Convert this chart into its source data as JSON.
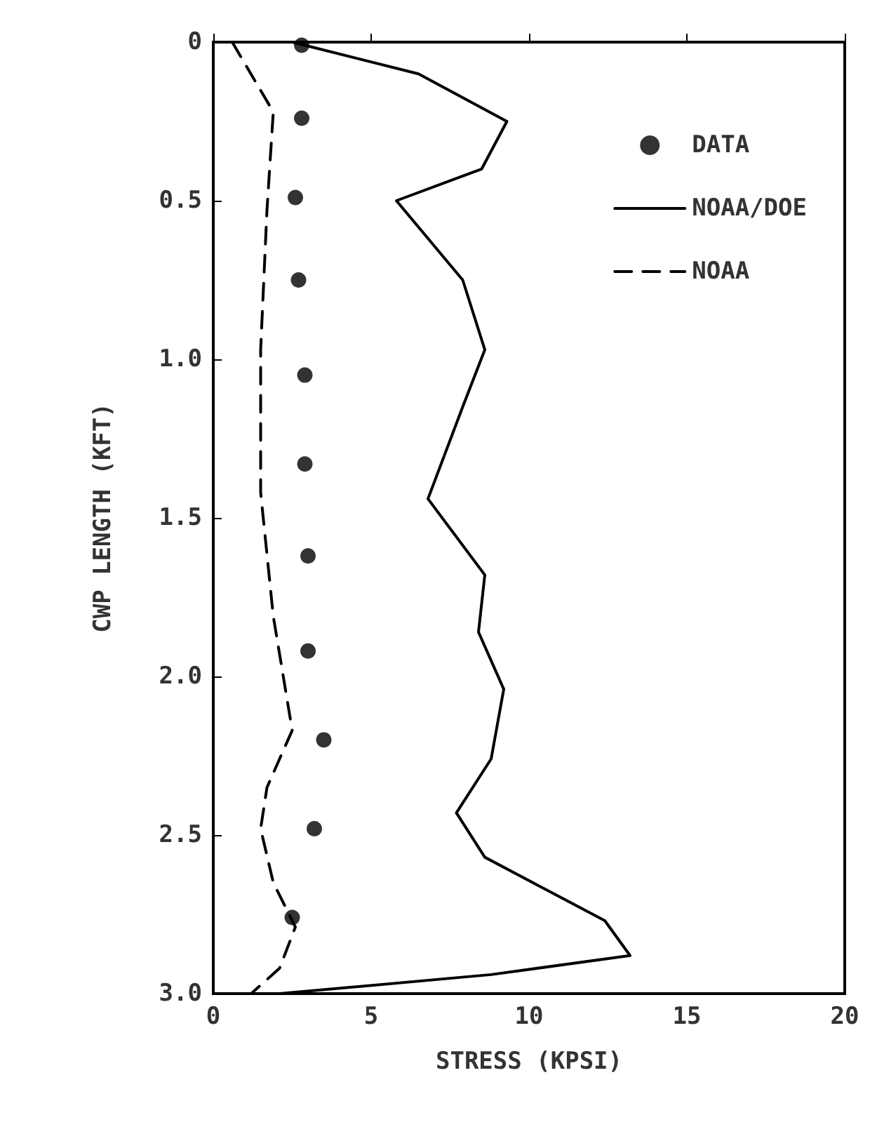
{
  "chart_data": {
    "type": "line",
    "xlabel": "STRESS (KPSI)",
    "ylabel": "CWP LENGTH (KFT)",
    "xlim": [
      0,
      20
    ],
    "xticks": [
      0,
      5,
      10,
      15,
      20
    ],
    "ylim": [
      3.0,
      0
    ],
    "yticks": [
      {
        "value": 0,
        "label": "0"
      },
      {
        "value": 0.5,
        "label": "0.5"
      },
      {
        "value": 1.0,
        "label": "1.0"
      },
      {
        "value": 1.5,
        "label": "1.5"
      },
      {
        "value": 2.0,
        "label": "2.0"
      },
      {
        "value": 2.5,
        "label": "2.5"
      },
      {
        "value": 3.0,
        "label": "3.0"
      }
    ],
    "grid": false,
    "legend": "top right",
    "series": [
      {
        "name": "DATA",
        "type": "scatter",
        "marker": "circle",
        "color": "#000000",
        "x": [
          2.8,
          2.8,
          2.6,
          2.7,
          2.9,
          2.9,
          3.0,
          3.0,
          3.5,
          3.2,
          2.5
        ],
        "values": [
          0.01,
          0.24,
          0.49,
          0.75,
          1.05,
          1.33,
          1.62,
          1.92,
          2.2,
          2.48,
          2.76
        ]
      },
      {
        "name": "NOAA/DOE",
        "marker": "none",
        "line_style": "solid",
        "color": "#000000",
        "x": [
          2.5,
          6.5,
          9.3,
          8.5,
          5.8,
          7.9,
          8.6,
          7.9,
          6.8,
          8.6,
          8.4,
          9.2,
          8.8,
          7.7,
          8.6,
          12.4,
          13.2,
          8.8,
          2.1
        ],
        "values": [
          0,
          0.1,
          0.25,
          0.4,
          0.5,
          0.75,
          0.97,
          1.15,
          1.44,
          1.68,
          1.86,
          2.04,
          2.26,
          2.43,
          2.57,
          2.77,
          2.88,
          2.94,
          3.0
        ]
      },
      {
        "name": "NOAA",
        "marker": "none",
        "line_style": "dashed",
        "color": "#000000",
        "x": [
          0.6,
          1.9,
          1.7,
          1.5,
          1.5,
          1.9,
          2.5,
          1.7,
          1.5,
          1.9,
          2.6,
          2.1,
          1.2
        ],
        "values": [
          0,
          0.22,
          0.53,
          0.97,
          1.42,
          1.81,
          2.17,
          2.35,
          2.48,
          2.65,
          2.79,
          2.92,
          3.0
        ]
      }
    ]
  }
}
